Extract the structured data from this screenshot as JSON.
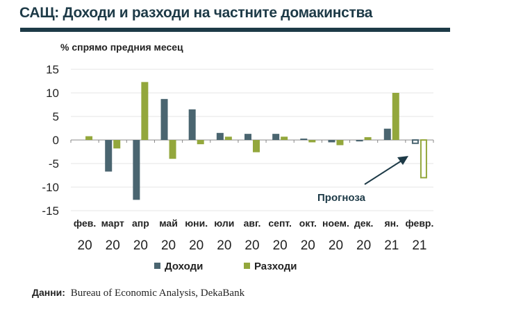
{
  "chart_data": {
    "type": "bar",
    "title": "САЩ: Доходи и разходи на частните домакинства",
    "ylabel": "% спрямо предния месец",
    "ylim": [
      -15,
      15
    ],
    "yticks": [
      15,
      10,
      5,
      0,
      -5,
      -10,
      -15
    ],
    "grid": true,
    "categories": [
      "фев.",
      "март",
      "апр",
      "май",
      "юни.",
      "юли",
      "авг.",
      "септ.",
      "окт.",
      "ноем.",
      "дек.",
      "ян.",
      "февр."
    ],
    "years": [
      "20",
      "20",
      "20",
      "20",
      "20",
      "20",
      "20",
      "20",
      "20",
      "20",
      "20",
      "21",
      "21"
    ],
    "series": [
      {
        "name": "Доходи",
        "color": "#4a6570",
        "values": [
          0,
          -6.7,
          -12.7,
          8.7,
          6.5,
          1.5,
          1.3,
          1.3,
          0.3,
          -0.5,
          -0.3,
          2.4,
          -0.7
        ],
        "forecast": [
          false,
          false,
          false,
          false,
          false,
          false,
          false,
          false,
          false,
          false,
          false,
          false,
          true
        ]
      },
      {
        "name": "Разходи",
        "color": "#93a73c",
        "values": [
          0.8,
          -1.8,
          12.3,
          -4.0,
          -0.9,
          0.7,
          -2.6,
          0.7,
          -0.5,
          -1.1,
          0.6,
          10.0,
          -8.0
        ],
        "forecast": [
          false,
          false,
          false,
          false,
          false,
          false,
          false,
          false,
          false,
          false,
          false,
          false,
          true
        ]
      }
    ],
    "legend": "bottom",
    "annotation": "Прогноза"
  },
  "source": {
    "label": "Данни:",
    "text": "Bureau of Economic Analysis, DekaBank"
  }
}
